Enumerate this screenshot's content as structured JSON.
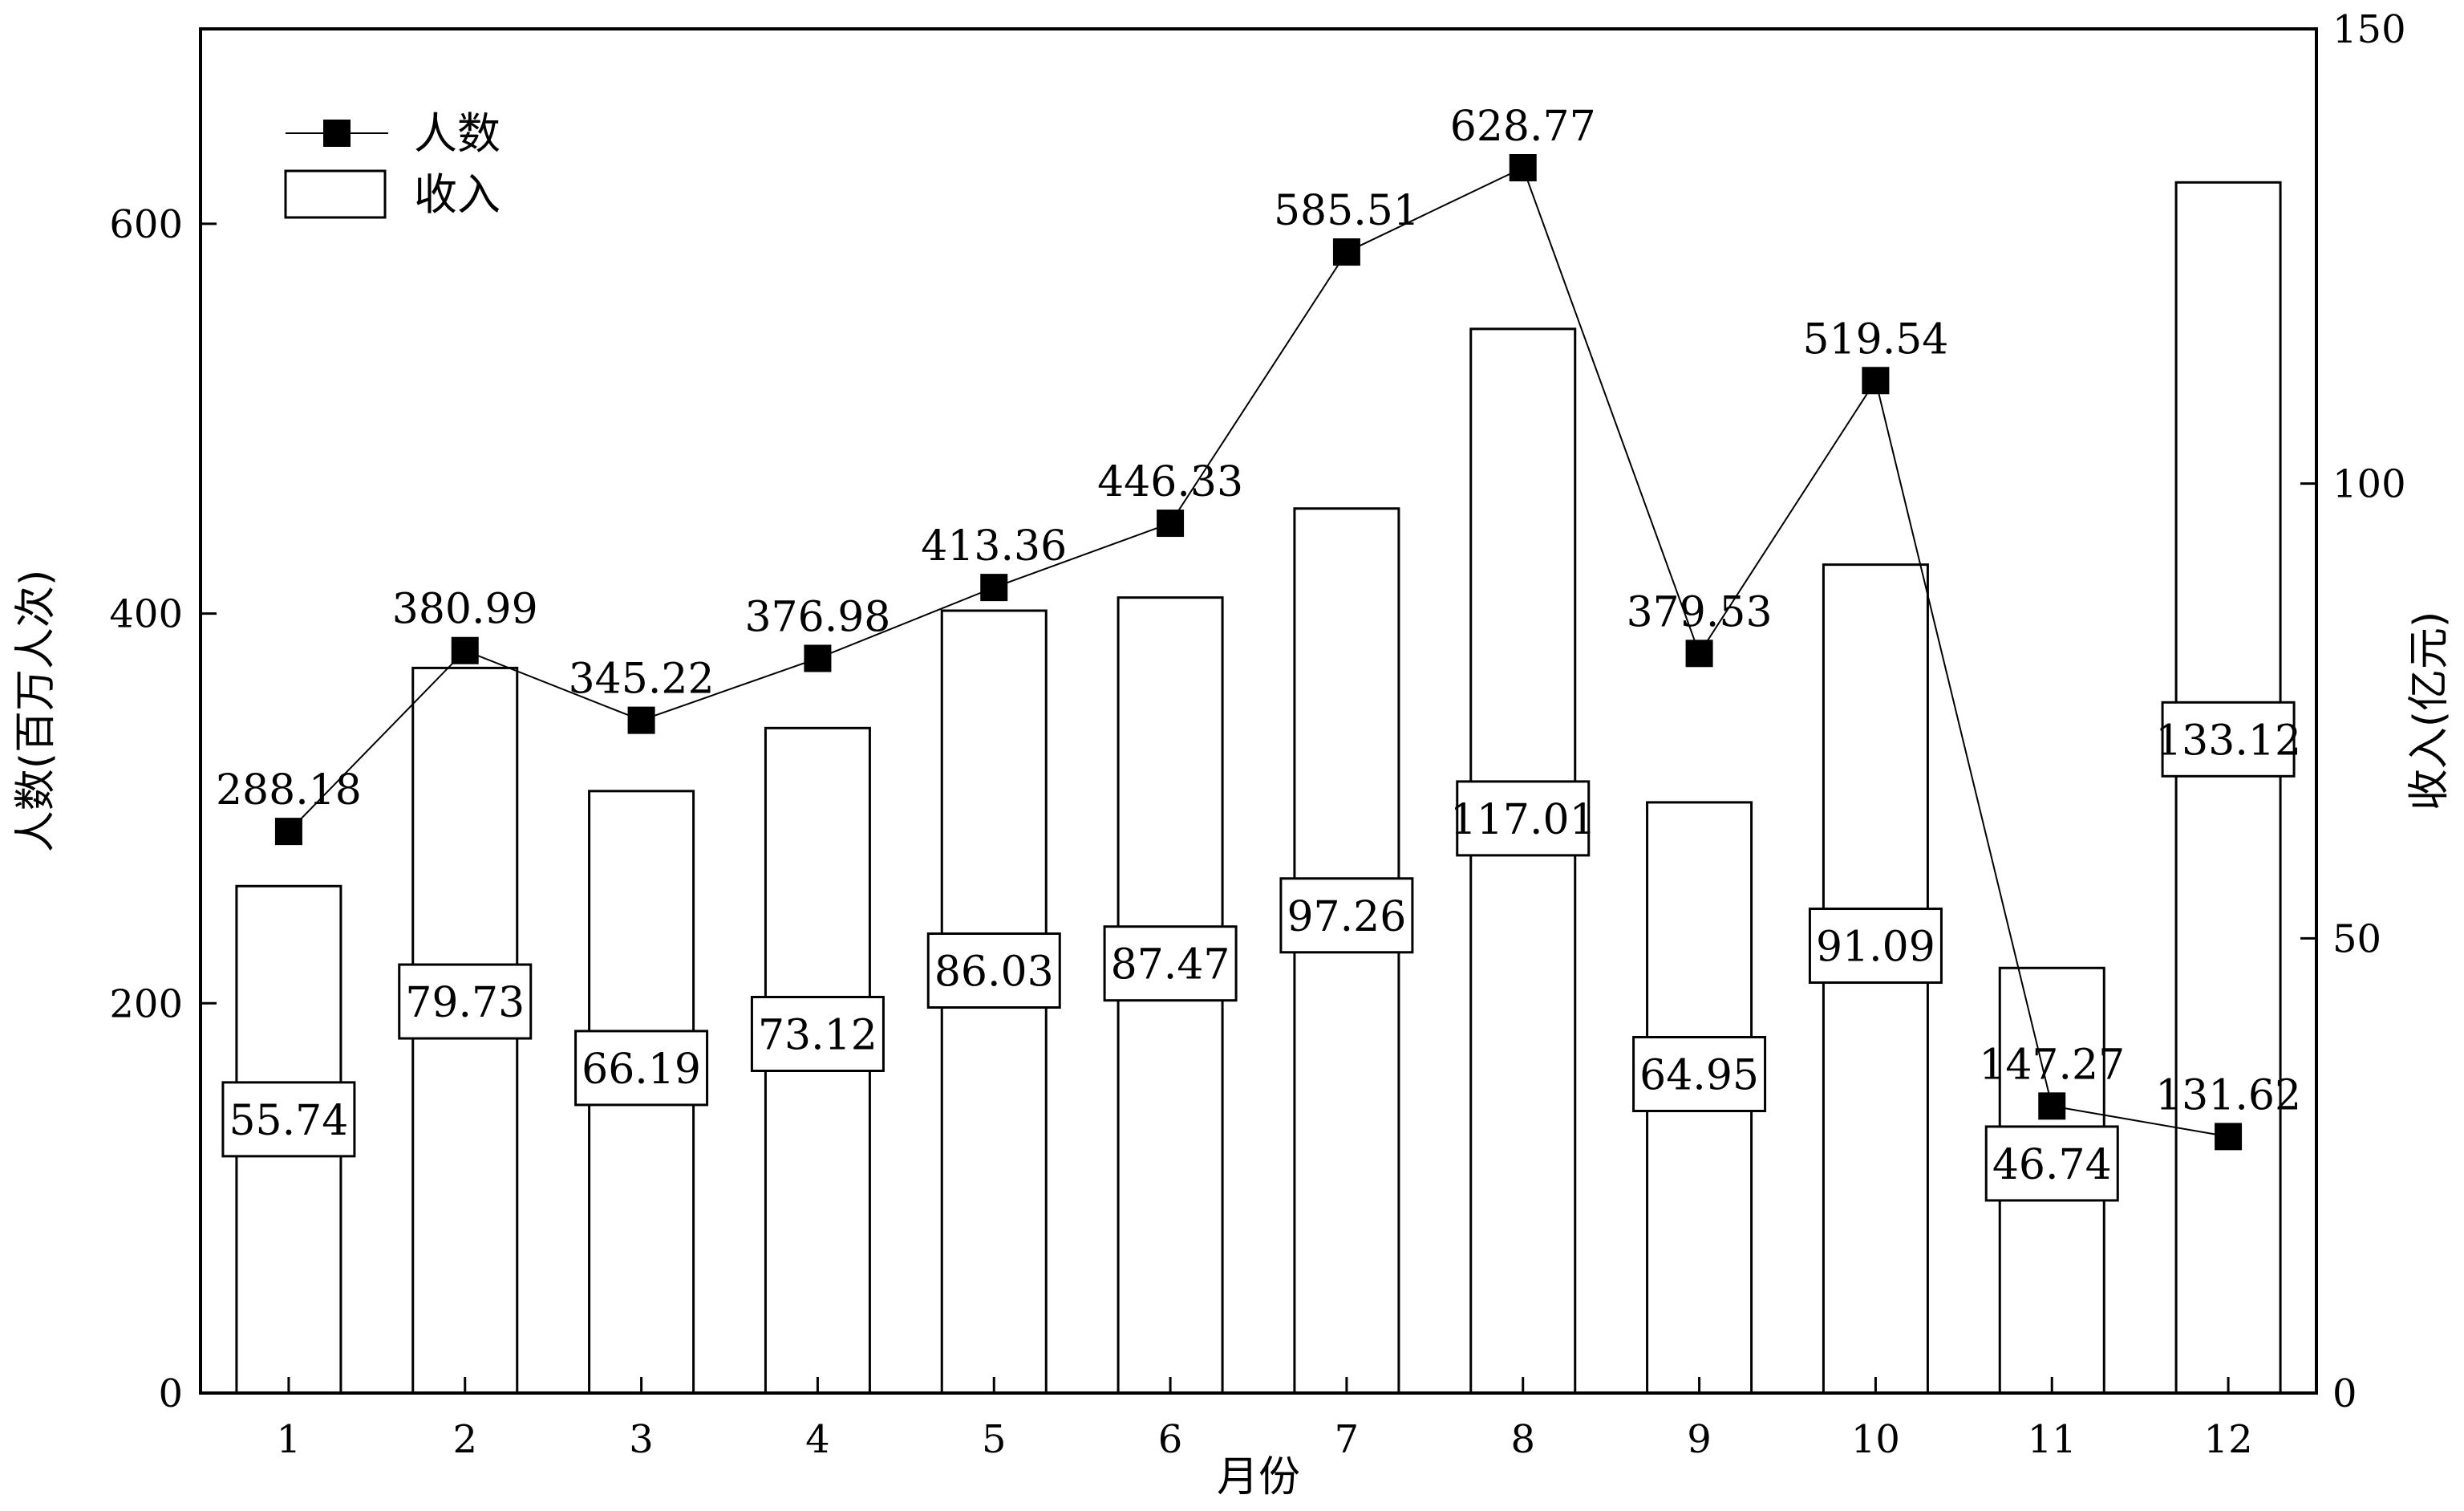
{
  "chart_data": {
    "type": "bar",
    "title": "",
    "xlabel": "月份",
    "ylabel_left": "人数(百万人次)",
    "ylabel_right": "收入(亿元)",
    "categories": [
      "1",
      "2",
      "3",
      "4",
      "5",
      "6",
      "7",
      "8",
      "9",
      "10",
      "11",
      "12"
    ],
    "ylim_left": [
      0,
      700
    ],
    "yticks_left": [
      "0",
      "200",
      "400",
      "600"
    ],
    "ylim_right": [
      0,
      150
    ],
    "yticks_right": [
      "0",
      "50",
      "100",
      "150"
    ],
    "grid": false,
    "legend_position": "top-left",
    "legend": [
      {
        "label": "人数",
        "type": "line-marker"
      },
      {
        "label": "收入",
        "type": "bar"
      }
    ],
    "series": [
      {
        "name": "人数",
        "type": "line",
        "axis": "left",
        "values": [
          288.18,
          380.99,
          345.22,
          376.98,
          413.36,
          446.33,
          585.51,
          628.77,
          379.53,
          519.54,
          147.27,
          131.62
        ],
        "labels": [
          "288.18",
          "380.99",
          "345.22",
          "376.98",
          "413.36",
          "446.33",
          "585.51",
          "628.77",
          "379.53",
          "519.54",
          "147.27",
          "131.62"
        ]
      },
      {
        "name": "收入",
        "type": "bar",
        "axis": "right",
        "values": [
          55.74,
          79.73,
          66.19,
          73.12,
          86.03,
          87.47,
          97.26,
          117.01,
          64.95,
          91.09,
          46.74,
          133.12
        ],
        "labels": [
          "55.74",
          "79.73",
          "66.19",
          "73.12",
          "86.03",
          "87.47",
          "97.26",
          "117.01",
          "64.95",
          "91.09",
          "46.74",
          "133.12"
        ]
      }
    ]
  }
}
